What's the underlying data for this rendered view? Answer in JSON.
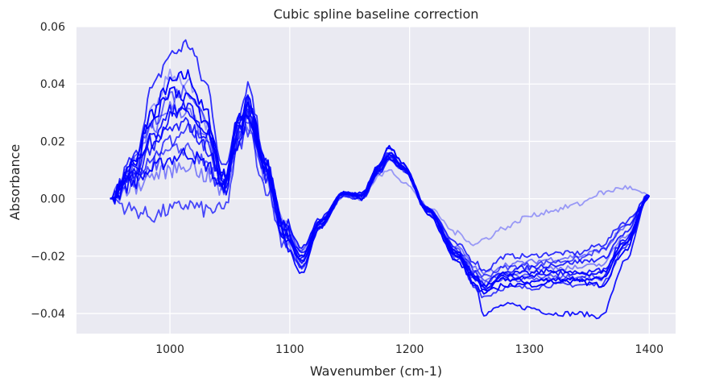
{
  "chart_data": {
    "type": "line",
    "title": "Cubic spline baseline correction",
    "xlabel": "Wavenumber (cm-1)",
    "ylabel": "Absorbance",
    "xlim": [
      922,
      1422
    ],
    "ylim": [
      -0.047,
      0.06
    ],
    "x_ticks": [
      {
        "value": 1000,
        "label": "1000"
      },
      {
        "value": 1100,
        "label": "1100"
      },
      {
        "value": 1200,
        "label": "1200"
      },
      {
        "value": 1300,
        "label": "1300"
      },
      {
        "value": 1400,
        "label": "1400"
      }
    ],
    "y_ticks": [
      {
        "value": -0.04,
        "label": "−0.04"
      },
      {
        "value": -0.02,
        "label": "−0.02"
      },
      {
        "value": 0.0,
        "label": "0.00"
      },
      {
        "value": 0.02,
        "label": "0.02"
      },
      {
        "value": 0.04,
        "label": "0.04"
      },
      {
        "value": 0.06,
        "label": "0.06"
      }
    ],
    "grid": true,
    "background": "#eaeaf2",
    "line_color": "#0000ff",
    "x": [
      950,
      970,
      985,
      1000,
      1015,
      1030,
      1045,
      1058,
      1065,
      1080,
      1095,
      1110,
      1125,
      1145,
      1160,
      1175,
      1183,
      1195,
      1215,
      1240,
      1255,
      1262,
      1280,
      1300,
      1320,
      1340,
      1360,
      1380,
      1400
    ],
    "series": [
      {
        "alpha": 1.0,
        "values": [
          0.0,
          0.012,
          0.03,
          0.04,
          0.043,
          0.03,
          0.008,
          0.028,
          0.034,
          0.01,
          -0.012,
          -0.02,
          -0.008,
          0.002,
          0.002,
          0.012,
          0.018,
          0.012,
          -0.004,
          -0.02,
          -0.028,
          -0.032,
          -0.028,
          -0.029,
          -0.028,
          -0.029,
          -0.03,
          -0.018,
          0.001
        ]
      },
      {
        "alpha": 0.9,
        "values": [
          0.0,
          0.01,
          0.02,
          0.028,
          0.03,
          0.022,
          0.006,
          0.026,
          0.032,
          0.012,
          -0.008,
          -0.017,
          -0.007,
          0.002,
          0.001,
          0.01,
          0.014,
          0.01,
          -0.004,
          -0.02,
          -0.03,
          -0.04,
          -0.037,
          -0.038,
          -0.04,
          -0.04,
          -0.041,
          -0.022,
          0.001
        ]
      },
      {
        "alpha": 0.8,
        "values": [
          0.0,
          0.014,
          0.038,
          0.05,
          0.054,
          0.04,
          0.01,
          0.03,
          0.04,
          0.014,
          -0.01,
          -0.024,
          -0.009,
          0.002,
          0.001,
          0.012,
          0.016,
          0.011,
          -0.003,
          -0.016,
          -0.022,
          -0.025,
          -0.02,
          -0.02,
          -0.019,
          -0.019,
          -0.016,
          -0.008,
          0.001
        ]
      },
      {
        "alpha": 0.75,
        "values": [
          0.0,
          0.008,
          0.015,
          0.02,
          0.024,
          0.018,
          0.004,
          0.022,
          0.028,
          0.008,
          -0.012,
          -0.022,
          -0.01,
          0.001,
          0.0,
          0.009,
          0.014,
          0.01,
          -0.005,
          -0.021,
          -0.031,
          -0.034,
          -0.031,
          -0.031,
          -0.03,
          -0.03,
          -0.03,
          -0.017,
          0.001
        ]
      },
      {
        "alpha": 0.95,
        "values": [
          0.0,
          0.006,
          0.01,
          0.014,
          0.016,
          0.012,
          0.003,
          0.02,
          0.03,
          0.008,
          -0.015,
          -0.026,
          -0.01,
          0.002,
          0.001,
          0.011,
          0.015,
          0.011,
          -0.004,
          -0.019,
          -0.027,
          -0.03,
          -0.026,
          -0.026,
          -0.025,
          -0.026,
          -0.026,
          -0.015,
          0.001
        ]
      },
      {
        "alpha": 0.7,
        "values": [
          0.0,
          -0.004,
          -0.006,
          -0.004,
          -0.002,
          -0.004,
          -0.004,
          0.018,
          0.024,
          0.004,
          -0.015,
          -0.024,
          -0.01,
          0.001,
          0.0,
          0.01,
          0.015,
          0.011,
          -0.003,
          -0.018,
          -0.025,
          -0.027,
          -0.024,
          -0.023,
          -0.022,
          -0.021,
          -0.018,
          -0.01,
          0.001
        ]
      },
      {
        "alpha": 0.6,
        "values": [
          0.0,
          0.012,
          0.026,
          0.036,
          0.038,
          0.028,
          0.006,
          0.024,
          0.03,
          0.01,
          -0.009,
          -0.018,
          -0.008,
          0.002,
          0.001,
          0.01,
          0.014,
          0.01,
          -0.004,
          -0.018,
          -0.026,
          -0.029,
          -0.026,
          -0.027,
          -0.027,
          -0.028,
          -0.028,
          -0.016,
          0.001
        ]
      },
      {
        "alpha": 0.5,
        "values": [
          0.0,
          0.01,
          0.024,
          0.032,
          0.03,
          0.02,
          0.004,
          0.024,
          0.03,
          0.008,
          -0.01,
          -0.02,
          -0.008,
          0.002,
          0.0,
          0.01,
          0.016,
          0.011,
          -0.003,
          -0.017,
          -0.024,
          -0.026,
          -0.023,
          -0.022,
          -0.021,
          -0.02,
          -0.018,
          -0.01,
          0.001
        ]
      },
      {
        "alpha": 0.85,
        "values": [
          0.0,
          0.008,
          0.018,
          0.024,
          0.026,
          0.018,
          0.004,
          0.025,
          0.03,
          0.01,
          -0.01,
          -0.019,
          -0.009,
          0.002,
          0.001,
          0.011,
          0.015,
          0.011,
          -0.004,
          -0.019,
          -0.027,
          -0.03,
          -0.025,
          -0.024,
          -0.023,
          -0.022,
          -0.021,
          -0.012,
          0.001
        ]
      },
      {
        "alpha": 0.35,
        "values": [
          0.0,
          0.012,
          0.03,
          0.044,
          0.04,
          0.026,
          0.006,
          0.024,
          0.03,
          0.01,
          -0.008,
          -0.018,
          -0.008,
          0.002,
          0.0,
          0.008,
          0.01,
          0.006,
          -0.003,
          -0.012,
          -0.016,
          -0.014,
          -0.01,
          -0.006,
          -0.004,
          -0.002,
          0.002,
          0.004,
          0.001
        ]
      },
      {
        "alpha": 0.65,
        "values": [
          0.0,
          0.006,
          0.012,
          0.016,
          0.018,
          0.012,
          0.002,
          0.022,
          0.028,
          0.008,
          -0.012,
          -0.022,
          -0.009,
          0.002,
          0.0,
          0.009,
          0.014,
          0.01,
          -0.004,
          -0.02,
          -0.028,
          -0.031,
          -0.028,
          -0.028,
          -0.028,
          -0.027,
          -0.027,
          -0.015,
          0.001
        ]
      },
      {
        "alpha": 1.0,
        "values": [
          0.0,
          0.012,
          0.028,
          0.038,
          0.036,
          0.026,
          0.006,
          0.028,
          0.036,
          0.012,
          -0.012,
          -0.022,
          -0.008,
          0.002,
          0.001,
          0.012,
          0.018,
          0.012,
          -0.005,
          -0.022,
          -0.03,
          -0.033,
          -0.03,
          -0.03,
          -0.029,
          -0.028,
          -0.028,
          -0.016,
          0.001
        ]
      },
      {
        "alpha": 0.45,
        "values": [
          0.0,
          0.004,
          0.008,
          0.01,
          0.012,
          0.008,
          0.002,
          0.02,
          0.026,
          0.006,
          -0.014,
          -0.024,
          -0.01,
          0.001,
          0.0,
          0.01,
          0.014,
          0.01,
          -0.004,
          -0.019,
          -0.026,
          -0.029,
          -0.026,
          -0.025,
          -0.024,
          -0.024,
          -0.023,
          -0.013,
          0.001
        ]
      },
      {
        "alpha": 0.9,
        "values": [
          0.0,
          0.01,
          0.022,
          0.03,
          0.032,
          0.022,
          0.004,
          0.026,
          0.034,
          0.012,
          -0.01,
          -0.021,
          -0.008,
          0.002,
          0.001,
          0.011,
          0.016,
          0.011,
          -0.004,
          -0.02,
          -0.028,
          -0.031,
          -0.027,
          -0.027,
          -0.026,
          -0.026,
          -0.025,
          -0.014,
          0.001
        ]
      }
    ]
  }
}
